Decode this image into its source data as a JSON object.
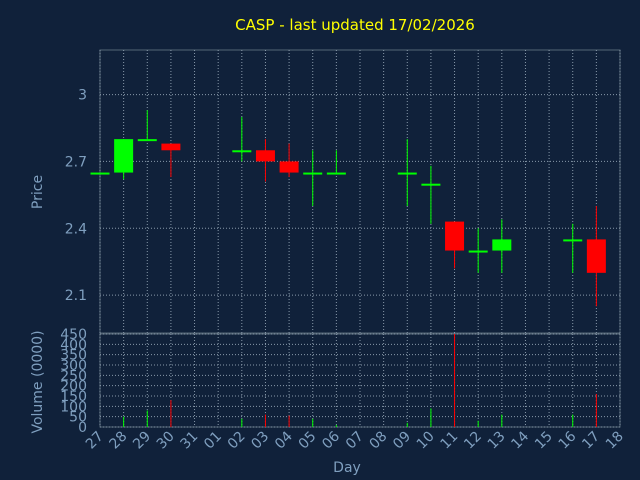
{
  "chart_data": {
    "type": "candlestick",
    "title": "CASP - last updated 17/02/2026",
    "xlabel": "Day",
    "ylabel": "Price",
    "volume_label": "Volume (0000)",
    "x_ticks": [
      "27",
      "28",
      "29",
      "30",
      "31",
      "01",
      "02",
      "03",
      "04",
      "05",
      "06",
      "07",
      "08",
      "09",
      "10",
      "11",
      "12",
      "13",
      "14",
      "15",
      "16",
      "17",
      "18"
    ],
    "price_axis": {
      "min": 1.93,
      "max": 3.2,
      "ticks": [
        2.1,
        2.4,
        2.7,
        3
      ]
    },
    "volume_axis": {
      "min": 0,
      "max": 450,
      "ticks": [
        0,
        50,
        100,
        150,
        200,
        250,
        300,
        350,
        400,
        450
      ]
    },
    "colors": {
      "up": "#00ff00",
      "down": "#ff0000",
      "title": "#ffff00",
      "axis_text": "#7f9fbf",
      "background": "#10213a",
      "grid": "#8899aa"
    },
    "candles": [
      {
        "day": 0,
        "open": 2.65,
        "high": 2.65,
        "low": 2.65,
        "close": 2.65,
        "volume": 0
      },
      {
        "day": 1,
        "open": 2.65,
        "high": 2.8,
        "low": 2.62,
        "close": 2.8,
        "volume": 50
      },
      {
        "day": 2,
        "open": 2.8,
        "high": 2.93,
        "low": 2.8,
        "close": 2.8,
        "volume": 80
      },
      {
        "day": 3,
        "open": 2.78,
        "high": 2.78,
        "low": 2.63,
        "close": 2.75,
        "volume": 130
      },
      {
        "day": 6,
        "open": 2.75,
        "high": 2.9,
        "low": 2.7,
        "close": 2.75,
        "volume": 40
      },
      {
        "day": 7,
        "open": 2.75,
        "high": 2.8,
        "low": 2.61,
        "close": 2.7,
        "volume": 60
      },
      {
        "day": 8,
        "open": 2.7,
        "high": 2.78,
        "low": 2.63,
        "close": 2.65,
        "volume": 55
      },
      {
        "day": 9,
        "open": 2.65,
        "high": 2.75,
        "low": 2.5,
        "close": 2.65,
        "volume": 40
      },
      {
        "day": 10,
        "open": 2.65,
        "high": 2.75,
        "low": 2.65,
        "close": 2.65,
        "volume": 10
      },
      {
        "day": 13,
        "open": 2.65,
        "high": 2.8,
        "low": 2.5,
        "close": 2.65,
        "volume": 20
      },
      {
        "day": 14,
        "open": 2.6,
        "high": 2.68,
        "low": 2.42,
        "close": 2.6,
        "volume": 90
      },
      {
        "day": 15,
        "open": 2.43,
        "high": 2.43,
        "low": 2.22,
        "close": 2.3,
        "volume": 450
      },
      {
        "day": 16,
        "open": 2.3,
        "high": 2.4,
        "low": 2.2,
        "close": 2.3,
        "volume": 30
      },
      {
        "day": 17,
        "open": 2.3,
        "high": 2.44,
        "low": 2.2,
        "close": 2.35,
        "volume": 60
      },
      {
        "day": 20,
        "open": 2.35,
        "high": 2.42,
        "low": 2.2,
        "close": 2.35,
        "volume": 60
      },
      {
        "day": 21,
        "open": 2.35,
        "high": 2.5,
        "low": 2.05,
        "close": 2.2,
        "volume": 160
      }
    ]
  }
}
